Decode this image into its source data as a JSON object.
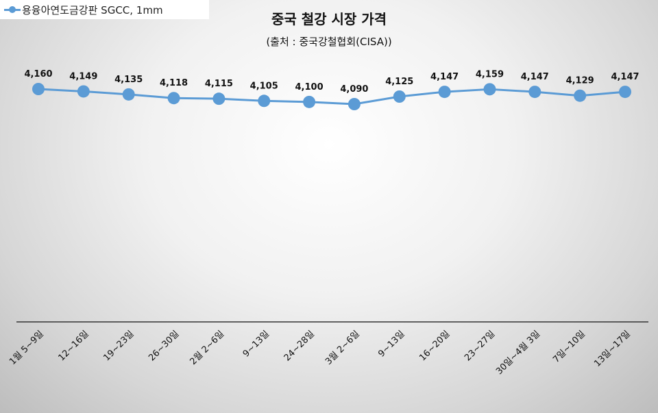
{
  "chart_data": {
    "type": "line",
    "title": "중국 철강 시장 가격",
    "subtitle": "(출처 : 중국강철협회(CISA))",
    "categories": [
      "1월 5~9일",
      "12~16일",
      "19~23일",
      "26~30일",
      "2월 2~6일",
      "9~13일",
      "24~28일",
      "3월 2~6일",
      "9~13일",
      "16~20일",
      "23~27일",
      "30일~4월 3일",
      "7일~10일",
      "13일~17일"
    ],
    "series": [
      {
        "name": "용융아연도금강판 SGCC, 1mm",
        "values": [
          4160,
          4149,
          4135,
          4118,
          4115,
          4105,
          4100,
          4090,
          4125,
          4147,
          4159,
          4147,
          4129,
          4147
        ],
        "labels": [
          "4,160",
          "4,149",
          "4,135",
          "4,118",
          "4,115",
          "4,105",
          "4,100",
          "4,090",
          "4,125",
          "4,147",
          "4,159",
          "4,147",
          "4,129",
          "4,147"
        ],
        "color": "#5b9bd5"
      }
    ],
    "ylim": [
      3500,
      4300
    ],
    "grid": false,
    "legend_position": "top-left"
  }
}
